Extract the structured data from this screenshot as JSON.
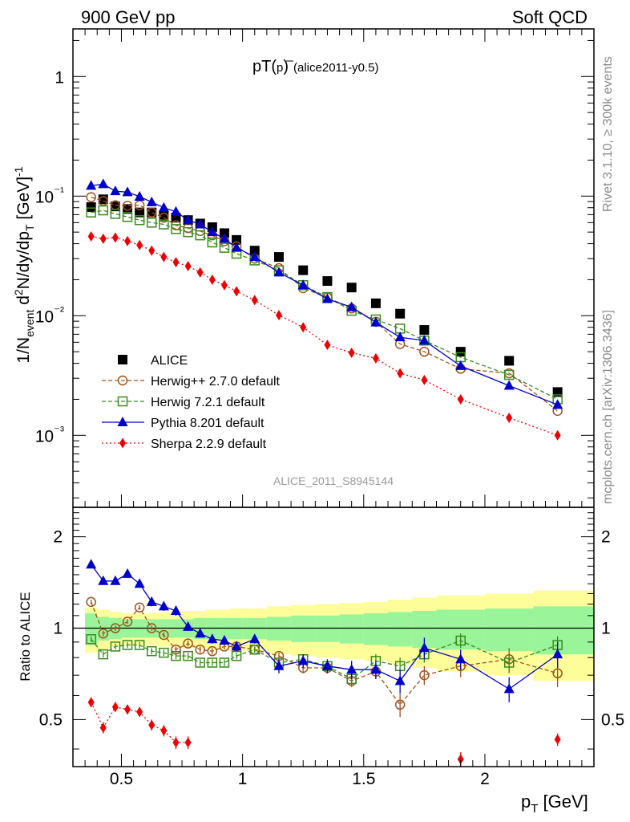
{
  "header": {
    "left": "900 GeV pp",
    "right": "Soft QCD"
  },
  "plot_title": {
    "main": "pT(",
    "pbar": "p",
    "close": ")",
    "tag": "(alice2011-y0.5)"
  },
  "side_labels": {
    "rivet": "Rivet 3.1.10, ≥ 300k events",
    "mcplots": "mcplots.cern.ch [arXiv:1306.3436]"
  },
  "analysis_id": "ALICE_2011_S8945144",
  "axes": {
    "ylabel_top": "1/N_event d²N/dy/dp_T [GeV]⁻¹",
    "ylabel_bottom": "Ratio to ALICE",
    "xlabel": "p_T [GeV]",
    "top_ticks": [
      "10⁻³",
      "10⁻²",
      "10⁻¹",
      "1"
    ],
    "bottom_ticks": [
      "0.5",
      "1",
      "2"
    ],
    "x_ticks": [
      "0.5",
      "1",
      "1.5",
      "2"
    ]
  },
  "colors": {
    "alice": "#000000",
    "herwigpp": "#a0521e",
    "herwig7": "#3a8a1e",
    "pythia": "#0000cc",
    "sherpa": "#ee0000",
    "band_inner": "#9af59a",
    "band_outer": "#fdfd9a"
  },
  "chart_data": {
    "type": "scatter",
    "xlim": [
      0.3,
      2.45
    ],
    "top": {
      "ylim": [
        0.00025,
        2.5
      ],
      "log": true
    },
    "ratio": {
      "ylim": [
        0.35,
        2.5
      ],
      "log": true
    },
    "x": [
      0.375,
      0.425,
      0.475,
      0.525,
      0.575,
      0.625,
      0.675,
      0.725,
      0.775,
      0.825,
      0.875,
      0.925,
      0.975,
      1.05,
      1.15,
      1.25,
      1.35,
      1.45,
      1.55,
      1.65,
      1.75,
      1.9,
      2.1,
      2.3
    ],
    "series": [
      {
        "name": "ALICE",
        "marker": "square-filled",
        "values": [
          0.081,
          0.094,
          0.082,
          0.078,
          0.073,
          0.073,
          0.068,
          0.066,
          0.063,
          0.059,
          0.055,
          0.049,
          0.043,
          0.035,
          0.031,
          0.024,
          0.0195,
          0.0172,
          0.0127,
          0.0104,
          0.0076,
          0.005,
          0.0042,
          0.0023
        ]
      },
      {
        "name": "Herwig++ 2.7.0 default",
        "marker": "circle-open",
        "line": "dashed",
        "values": [
          0.098,
          0.091,
          0.084,
          0.083,
          0.084,
          0.073,
          0.066,
          0.057,
          0.054,
          0.051,
          0.047,
          0.042,
          0.038,
          0.03,
          0.025,
          0.017,
          0.0142,
          0.0115,
          0.0089,
          0.0058,
          0.005,
          0.0036,
          0.0033,
          0.0016
        ]
      },
      {
        "name": "Herwig 7.2.1 default",
        "marker": "square-open",
        "line": "dashed",
        "values": [
          0.073,
          0.076,
          0.071,
          0.067,
          0.063,
          0.06,
          0.058,
          0.053,
          0.05,
          0.047,
          0.041,
          0.037,
          0.033,
          0.029,
          0.024,
          0.018,
          0.0143,
          0.011,
          0.0093,
          0.0078,
          0.0062,
          0.0045,
          0.0032,
          0.002
        ]
      },
      {
        "name": "Pythia 8.201 default",
        "marker": "triangle-filled",
        "line": "solid",
        "values": [
          0.122,
          0.126,
          0.11,
          0.108,
          0.099,
          0.089,
          0.08,
          0.074,
          0.063,
          0.058,
          0.05,
          0.044,
          0.037,
          0.031,
          0.023,
          0.018,
          0.0138,
          0.0118,
          0.0088,
          0.0066,
          0.0062,
          0.0038,
          0.0026,
          0.0018
        ]
      },
      {
        "name": "Sherpa 2.2.9 default",
        "marker": "diamond-filled",
        "line": "dotted",
        "values": [
          0.046,
          0.044,
          0.045,
          0.042,
          0.039,
          0.035,
          0.031,
          0.028,
          0.026,
          0.023,
          0.02,
          0.018,
          0.016,
          0.0135,
          0.0101,
          0.008,
          0.0057,
          0.0049,
          0.0044,
          0.0033,
          0.0029,
          0.002,
          0.0014,
          0.001
        ]
      }
    ],
    "ratio_series": [
      {
        "name": "Herwig++ 2.7.0 default",
        "values": [
          1.22,
          0.96,
          1.0,
          1.05,
          1.17,
          1.0,
          0.95,
          0.85,
          0.89,
          0.85,
          0.84,
          0.87,
          0.87,
          0.85,
          0.81,
          0.74,
          0.74,
          0.67,
          0.72,
          0.56,
          0.7,
          0.75,
          0.79,
          0.71
        ],
        "err": [
          0.02,
          0.02,
          0.02,
          0.02,
          0.02,
          0.02,
          0.02,
          0.02,
          0.02,
          0.02,
          0.02,
          0.02,
          0.02,
          0.02,
          0.02,
          0.03,
          0.03,
          0.03,
          0.04,
          0.05,
          0.05,
          0.06,
          0.07,
          0.07
        ]
      },
      {
        "name": "Herwig 7.2.1 default",
        "values": [
          0.92,
          0.82,
          0.87,
          0.88,
          0.88,
          0.84,
          0.83,
          0.81,
          0.81,
          0.77,
          0.77,
          0.77,
          0.81,
          0.85,
          0.77,
          0.79,
          0.75,
          0.68,
          0.78,
          0.75,
          0.82,
          0.91,
          0.77,
          0.88
        ],
        "err": [
          0.02,
          0.02,
          0.02,
          0.02,
          0.02,
          0.02,
          0.02,
          0.02,
          0.02,
          0.02,
          0.02,
          0.02,
          0.02,
          0.02,
          0.02,
          0.03,
          0.03,
          0.03,
          0.04,
          0.05,
          0.05,
          0.05,
          0.06,
          0.06
        ]
      },
      {
        "name": "Pythia 8.201 default",
        "values": [
          1.62,
          1.43,
          1.43,
          1.51,
          1.4,
          1.22,
          1.18,
          1.14,
          1.01,
          0.96,
          0.92,
          0.91,
          0.87,
          0.92,
          0.75,
          0.78,
          0.75,
          0.73,
          0.73,
          0.67,
          0.86,
          0.79,
          0.63,
          0.82
        ],
        "err": [
          0.02,
          0.02,
          0.02,
          0.04,
          0.04,
          0.04,
          0.04,
          0.04,
          0.03,
          0.03,
          0.03,
          0.03,
          0.03,
          0.03,
          0.04,
          0.04,
          0.04,
          0.05,
          0.05,
          0.06,
          0.07,
          0.06,
          0.06,
          0.08
        ]
      },
      {
        "name": "Sherpa 2.2.9 default",
        "values": [
          0.57,
          0.47,
          0.55,
          0.54,
          0.53,
          0.48,
          0.46,
          0.42,
          0.42,
          null,
          null,
          null,
          null,
          null,
          null,
          null,
          null,
          null,
          null,
          null,
          null,
          0.37,
          null,
          0.43
        ],
        "err": [
          0.02,
          0.02,
          0.02,
          0.02,
          0.02,
          0.02,
          0.02,
          0.02,
          0.02,
          null,
          null,
          null,
          null,
          null,
          null,
          null,
          null,
          null,
          null,
          null,
          null,
          0.02,
          null,
          0.02
        ]
      }
    ],
    "band": {
      "x_edges": [
        0.35,
        0.4,
        0.45,
        0.5,
        0.55,
        0.6,
        0.65,
        0.7,
        0.75,
        0.8,
        0.85,
        0.9,
        0.95,
        1.0,
        1.1,
        1.2,
        1.3,
        1.4,
        1.5,
        1.6,
        1.7,
        1.8,
        2.0,
        2.2,
        2.45
      ],
      "inner": [
        0.12,
        0.09,
        0.08,
        0.07,
        0.07,
        0.07,
        0.07,
        0.07,
        0.07,
        0.08,
        0.08,
        0.08,
        0.08,
        0.08,
        0.09,
        0.1,
        0.1,
        0.11,
        0.12,
        0.13,
        0.14,
        0.15,
        0.16,
        0.18
      ],
      "outer": [
        0.17,
        0.15,
        0.13,
        0.12,
        0.12,
        0.12,
        0.13,
        0.13,
        0.14,
        0.14,
        0.15,
        0.15,
        0.16,
        0.16,
        0.18,
        0.19,
        0.2,
        0.21,
        0.22,
        0.24,
        0.26,
        0.28,
        0.3,
        0.33
      ]
    },
    "legend_position": "lower-left"
  }
}
